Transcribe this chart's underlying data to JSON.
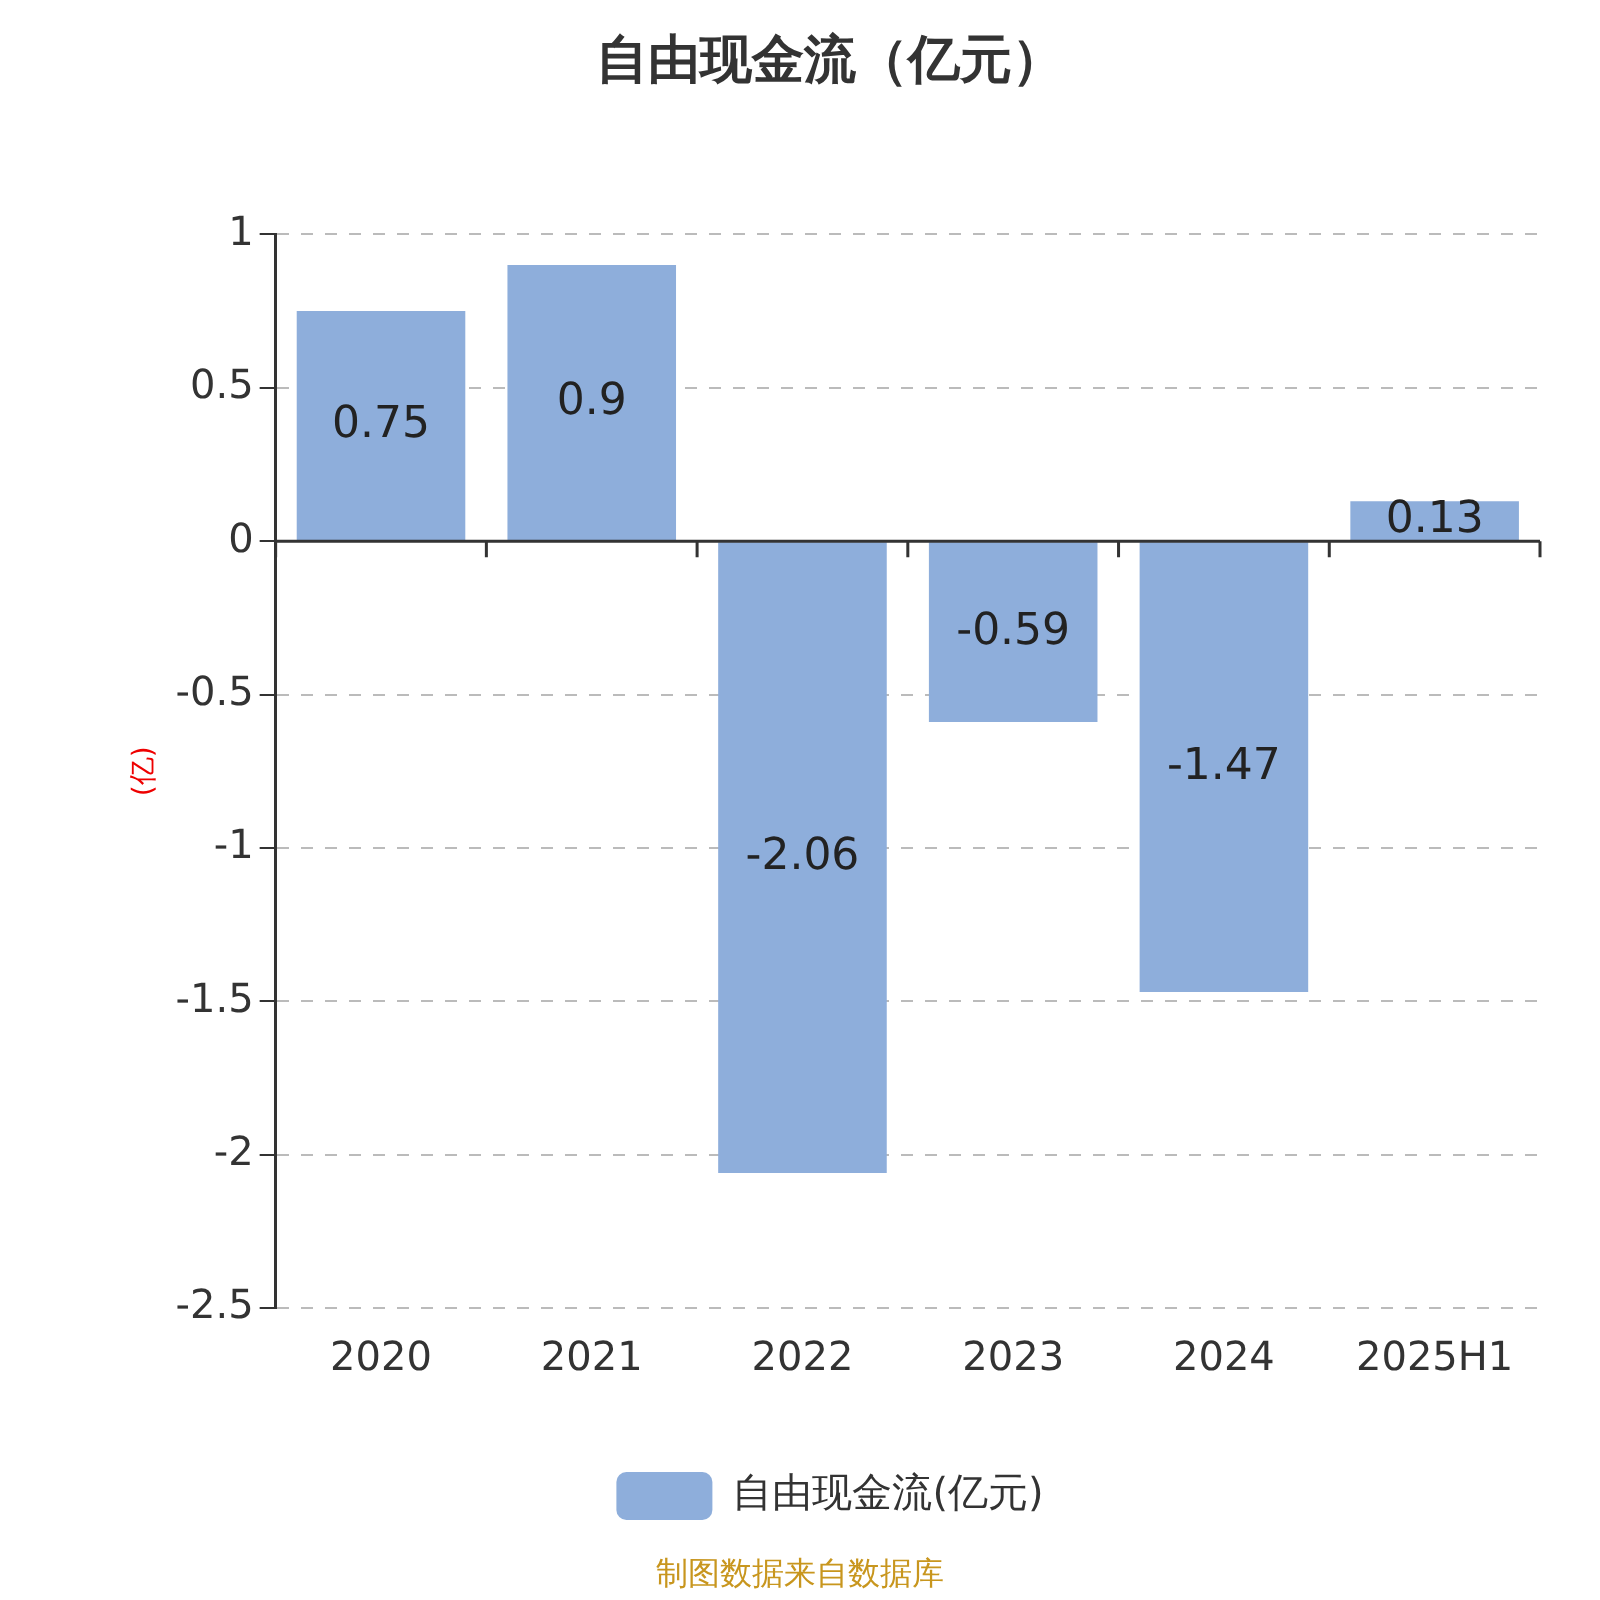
{
  "chart_data": {
    "type": "bar",
    "title": "自由现金流（亿元）",
    "ylabel": "(亿)",
    "categories": [
      "2020",
      "2021",
      "2022",
      "2023",
      "2024",
      "2025H1"
    ],
    "series": [
      {
        "name": "自由现金流(亿元)",
        "color": "#8eaedb",
        "values": [
          0.75,
          0.9,
          -2.06,
          -0.59,
          -1.47,
          0.13
        ]
      }
    ],
    "ylim": [
      -2.5,
      1
    ],
    "yticks": [
      -2.5,
      -2,
      -1.5,
      -1,
      -0.5,
      0,
      0.5,
      1
    ],
    "grid": "y",
    "legend": "bottom",
    "data_labels": true,
    "annotations": [
      "制图数据来自数据库"
    ]
  }
}
